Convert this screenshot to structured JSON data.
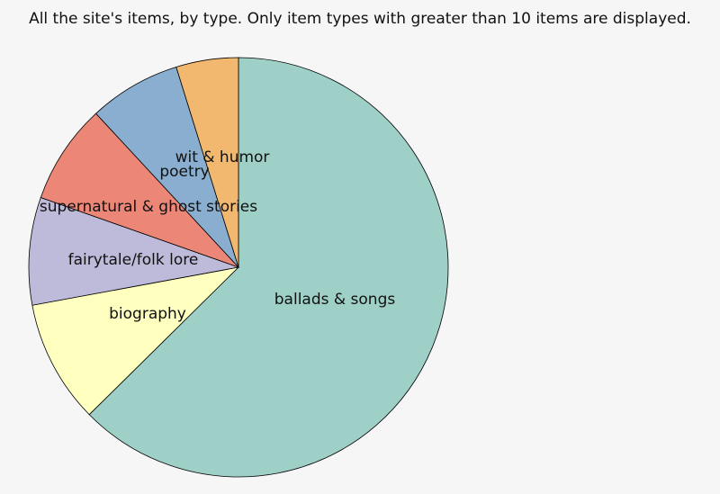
{
  "caption": "All the site's items, by type. Only item types with greater than 10 items are displayed.",
  "chart_data": {
    "type": "pie",
    "title": "",
    "start": "top",
    "direction": "clockwise",
    "legend": "none",
    "slices": [
      {
        "label": "ballads & songs",
        "value": 62.6,
        "color": "#9ed0c7"
      },
      {
        "label": "biography",
        "value": 9.5,
        "color": "#ffffc0"
      },
      {
        "label": "fairytale/folk lore",
        "value": 8.3,
        "color": "#bebad9"
      },
      {
        "label": "supernatural & ghost stories",
        "value": 7.7,
        "color": "#ec8677"
      },
      {
        "label": "poetry",
        "value": 7.1,
        "color": "#8aaecf"
      },
      {
        "label": "wit & humor",
        "value": 4.8,
        "color": "#f2b870"
      }
    ]
  }
}
